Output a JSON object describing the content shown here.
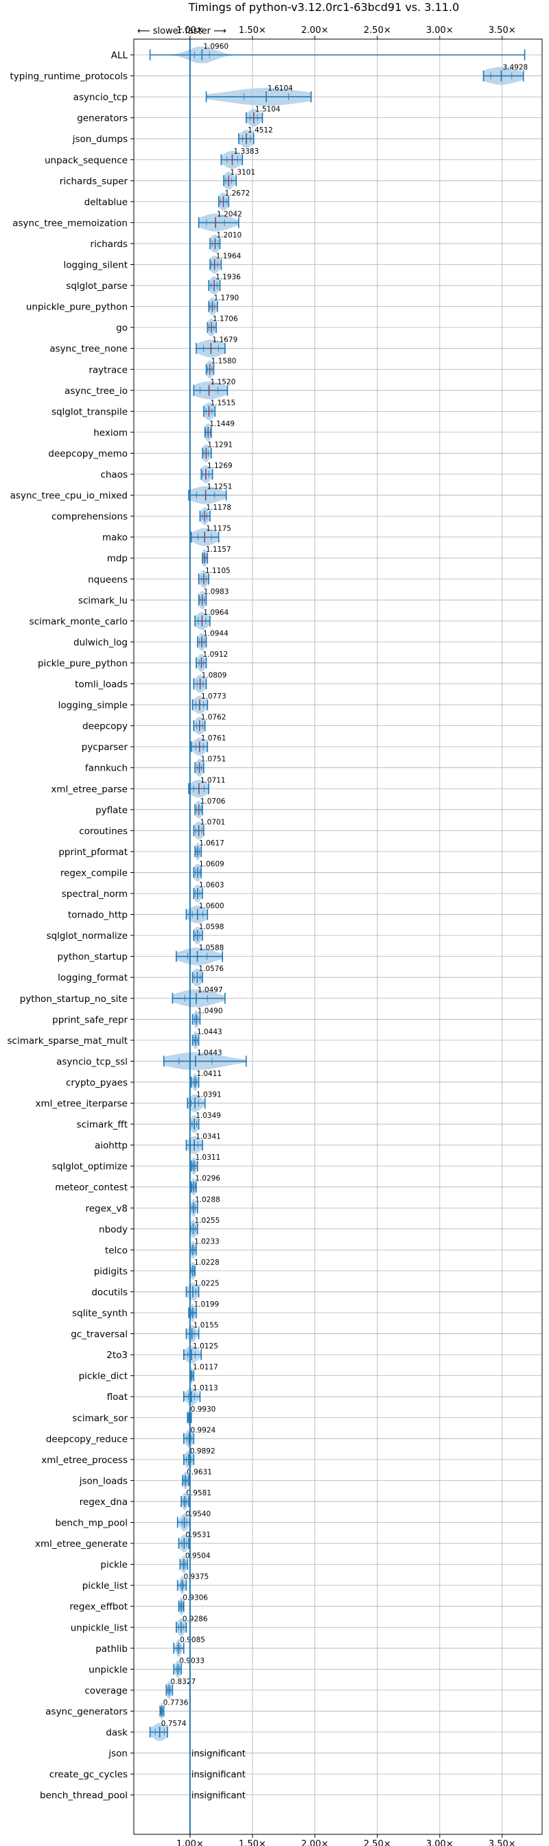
{
  "chart_data": {
    "type": "violin",
    "title": "Timings of python-v3.12.0rc1-63bcd91 vs. 3.11.0",
    "direction_label": "⟵ slower   faster ⟶",
    "x_ticks": [
      1.0,
      1.5,
      2.0,
      2.5,
      3.0,
      3.5
    ],
    "x_tick_labels": [
      "1.00×",
      "1.50×",
      "2.00×",
      "2.50×",
      "3.00×",
      "3.50×"
    ],
    "xlim": [
      0.55,
      3.82
    ],
    "reference_line": 1.0,
    "grid": true,
    "insignificant_label": "insignificant",
    "colors": {
      "violin": "#a6c8e4",
      "line": "#1f77b4",
      "median": "#d62728",
      "grid": "#b0b0b0"
    },
    "benchmarks": [
      {
        "name": "ALL",
        "value": 1.096,
        "label": "1.0960",
        "min": 0.68,
        "max": 3.68,
        "spread": 0.1
      },
      {
        "name": "typing_runtime_protocols",
        "value": 3.4928,
        "label": "3.4928",
        "min": 3.35,
        "max": 3.67,
        "spread": 0.14
      },
      {
        "name": "asyncio_tcp",
        "value": 1.6104,
        "label": "1.6104",
        "min": 1.13,
        "max": 1.97,
        "spread": 0.3
      },
      {
        "name": "generators",
        "value": 1.5104,
        "label": "1.5104",
        "min": 1.45,
        "max": 1.58,
        "spread": 0.05
      },
      {
        "name": "json_dumps",
        "value": 1.4512,
        "label": "1.4512",
        "min": 1.39,
        "max": 1.51,
        "spread": 0.05
      },
      {
        "name": "unpack_sequence",
        "value": 1.3383,
        "label": "1.3383",
        "min": 1.25,
        "max": 1.42,
        "spread": 0.07
      },
      {
        "name": "richards_super",
        "value": 1.3101,
        "label": "1.3101",
        "min": 1.27,
        "max": 1.37,
        "spread": 0.04
      },
      {
        "name": "deltablue",
        "value": 1.2672,
        "label": "1.2672",
        "min": 1.23,
        "max": 1.31,
        "spread": 0.04
      },
      {
        "name": "async_tree_memoization",
        "value": 1.2042,
        "label": "1.2042",
        "min": 1.07,
        "max": 1.39,
        "spread": 0.12
      },
      {
        "name": "richards",
        "value": 1.201,
        "label": "1.2010",
        "min": 1.16,
        "max": 1.24,
        "spread": 0.04
      },
      {
        "name": "logging_silent",
        "value": 1.1964,
        "label": "1.1964",
        "min": 1.16,
        "max": 1.25,
        "spread": 0.04
      },
      {
        "name": "sqlglot_parse",
        "value": 1.1936,
        "label": "1.1936",
        "min": 1.15,
        "max": 1.24,
        "spread": 0.04
      },
      {
        "name": "unpickle_pure_python",
        "value": 1.179,
        "label": "1.1790",
        "min": 1.15,
        "max": 1.22,
        "spread": 0.03
      },
      {
        "name": "go",
        "value": 1.1706,
        "label": "1.1706",
        "min": 1.14,
        "max": 1.21,
        "spread": 0.03
      },
      {
        "name": "async_tree_none",
        "value": 1.1679,
        "label": "1.1679",
        "min": 1.05,
        "max": 1.28,
        "spread": 0.1
      },
      {
        "name": "raytrace",
        "value": 1.158,
        "label": "1.1580",
        "min": 1.13,
        "max": 1.19,
        "spread": 0.03
      },
      {
        "name": "async_tree_io",
        "value": 1.152,
        "label": "1.1520",
        "min": 1.03,
        "max": 1.3,
        "spread": 0.12
      },
      {
        "name": "sqlglot_transpile",
        "value": 1.1515,
        "label": "1.1515",
        "min": 1.11,
        "max": 1.2,
        "spread": 0.04
      },
      {
        "name": "hexiom",
        "value": 1.1449,
        "label": "1.1449",
        "min": 1.12,
        "max": 1.17,
        "spread": 0.03
      },
      {
        "name": "deepcopy_memo",
        "value": 1.1291,
        "label": "1.1291",
        "min": 1.1,
        "max": 1.17,
        "spread": 0.03
      },
      {
        "name": "chaos",
        "value": 1.1269,
        "label": "1.1269",
        "min": 1.09,
        "max": 1.18,
        "spread": 0.04
      },
      {
        "name": "async_tree_cpu_io_mixed",
        "value": 1.1251,
        "label": "1.1251",
        "min": 0.99,
        "max": 1.29,
        "spread": 0.12
      },
      {
        "name": "comprehensions",
        "value": 1.1178,
        "label": "1.1178",
        "min": 1.08,
        "max": 1.16,
        "spread": 0.03
      },
      {
        "name": "mako",
        "value": 1.1175,
        "label": "1.1175",
        "min": 1.01,
        "max": 1.23,
        "spread": 0.09
      },
      {
        "name": "mdp",
        "value": 1.1157,
        "label": "1.1157",
        "min": 1.1,
        "max": 1.14,
        "spread": 0.02
      },
      {
        "name": "nqueens",
        "value": 1.1105,
        "label": "1.1105",
        "min": 1.07,
        "max": 1.15,
        "spread": 0.03
      },
      {
        "name": "scimark_lu",
        "value": 1.0983,
        "label": "1.0983",
        "min": 1.07,
        "max": 1.13,
        "spread": 0.03
      },
      {
        "name": "scimark_monte_carlo",
        "value": 1.0964,
        "label": "1.0964",
        "min": 1.04,
        "max": 1.16,
        "spread": 0.05
      },
      {
        "name": "dulwich_log",
        "value": 1.0944,
        "label": "1.0944",
        "min": 1.06,
        "max": 1.13,
        "spread": 0.03
      },
      {
        "name": "pickle_pure_python",
        "value": 1.0912,
        "label": "1.0912",
        "min": 1.05,
        "max": 1.13,
        "spread": 0.03
      },
      {
        "name": "tomli_loads",
        "value": 1.0809,
        "label": "1.0809",
        "min": 1.03,
        "max": 1.13,
        "spread": 0.04
      },
      {
        "name": "logging_simple",
        "value": 1.0773,
        "label": "1.0773",
        "min": 1.02,
        "max": 1.14,
        "spread": 0.05
      },
      {
        "name": "deepcopy",
        "value": 1.0762,
        "label": "1.0762",
        "min": 1.03,
        "max": 1.12,
        "spread": 0.04
      },
      {
        "name": "pycparser",
        "value": 1.0761,
        "label": "1.0761",
        "min": 1.01,
        "max": 1.14,
        "spread": 0.05
      },
      {
        "name": "fannkuch",
        "value": 1.0751,
        "label": "1.0751",
        "min": 1.04,
        "max": 1.11,
        "spread": 0.03
      },
      {
        "name": "xml_etree_parse",
        "value": 1.0711,
        "label": "1.0711",
        "min": 0.99,
        "max": 1.15,
        "spread": 0.07
      },
      {
        "name": "pyflate",
        "value": 1.0706,
        "label": "1.0706",
        "min": 1.04,
        "max": 1.1,
        "spread": 0.03
      },
      {
        "name": "coroutines",
        "value": 1.0701,
        "label": "1.0701",
        "min": 1.03,
        "max": 1.11,
        "spread": 0.04
      },
      {
        "name": "pprint_pformat",
        "value": 1.0617,
        "label": "1.0617",
        "min": 1.04,
        "max": 1.09,
        "spread": 0.02
      },
      {
        "name": "regex_compile",
        "value": 1.0609,
        "label": "1.0609",
        "min": 1.03,
        "max": 1.09,
        "spread": 0.03
      },
      {
        "name": "spectral_norm",
        "value": 1.0603,
        "label": "1.0603",
        "min": 1.03,
        "max": 1.1,
        "spread": 0.03
      },
      {
        "name": "tornado_http",
        "value": 1.06,
        "label": "1.0600",
        "min": 0.97,
        "max": 1.14,
        "spread": 0.07
      },
      {
        "name": "sqlglot_normalize",
        "value": 1.0598,
        "label": "1.0598",
        "min": 1.03,
        "max": 1.1,
        "spread": 0.03
      },
      {
        "name": "python_startup",
        "value": 1.0588,
        "label": "1.0588",
        "min": 0.89,
        "max": 1.26,
        "spread": 0.13
      },
      {
        "name": "logging_format",
        "value": 1.0576,
        "label": "1.0576",
        "min": 1.02,
        "max": 1.1,
        "spread": 0.04
      },
      {
        "name": "python_startup_no_site",
        "value": 1.0497,
        "label": "1.0497",
        "min": 0.86,
        "max": 1.28,
        "spread": 0.15
      },
      {
        "name": "pprint_safe_repr",
        "value": 1.049,
        "label": "1.0490",
        "min": 1.02,
        "max": 1.08,
        "spread": 0.02
      },
      {
        "name": "scimark_sparse_mat_mult",
        "value": 1.0443,
        "label": "1.0443",
        "min": 1.02,
        "max": 1.07,
        "spread": 0.02
      },
      {
        "name": "asyncio_tcp_ssl",
        "value": 1.0443,
        "label": "1.0443",
        "min": 0.79,
        "max": 1.45,
        "spread": 0.22
      },
      {
        "name": "crypto_pyaes",
        "value": 1.0411,
        "label": "1.0411",
        "min": 1.01,
        "max": 1.07,
        "spread": 0.02
      },
      {
        "name": "xml_etree_iterparse",
        "value": 1.0391,
        "label": "1.0391",
        "min": 0.98,
        "max": 1.12,
        "spread": 0.05
      },
      {
        "name": "scimark_fft",
        "value": 1.0349,
        "label": "1.0349",
        "min": 1.0,
        "max": 1.07,
        "spread": 0.03
      },
      {
        "name": "aiohttp",
        "value": 1.0341,
        "label": "1.0341",
        "min": 0.97,
        "max": 1.1,
        "spread": 0.05
      },
      {
        "name": "sqlglot_optimize",
        "value": 1.0311,
        "label": "1.0311",
        "min": 1.01,
        "max": 1.06,
        "spread": 0.02
      },
      {
        "name": "meteor_contest",
        "value": 1.0296,
        "label": "1.0296",
        "min": 1.01,
        "max": 1.05,
        "spread": 0.02
      },
      {
        "name": "regex_v8",
        "value": 1.0288,
        "label": "1.0288",
        "min": 1.0,
        "max": 1.06,
        "spread": 0.02
      },
      {
        "name": "nbody",
        "value": 1.0255,
        "label": "1.0255",
        "min": 1.0,
        "max": 1.06,
        "spread": 0.03
      },
      {
        "name": "telco",
        "value": 1.0233,
        "label": "1.0233",
        "min": 1.0,
        "max": 1.05,
        "spread": 0.02
      },
      {
        "name": "pidigits",
        "value": 1.0228,
        "label": "1.0228",
        "min": 1.0,
        "max": 1.04,
        "spread": 0.02
      },
      {
        "name": "docutils",
        "value": 1.0225,
        "label": "1.0225",
        "min": 0.97,
        "max": 1.07,
        "spread": 0.04
      },
      {
        "name": "sqlite_synth",
        "value": 1.0199,
        "label": "1.0199",
        "min": 0.99,
        "max": 1.05,
        "spread": 0.02
      },
      {
        "name": "gc_traversal",
        "value": 1.0155,
        "label": "1.0155",
        "min": 0.97,
        "max": 1.07,
        "spread": 0.03
      },
      {
        "name": "2to3",
        "value": 1.0125,
        "label": "1.0125",
        "min": 0.95,
        "max": 1.09,
        "spread": 0.05
      },
      {
        "name": "pickle_dict",
        "value": 1.0117,
        "label": "1.0117",
        "min": 1.0,
        "max": 1.03,
        "spread": 0.01
      },
      {
        "name": "float",
        "value": 1.0113,
        "label": "1.0113",
        "min": 0.95,
        "max": 1.08,
        "spread": 0.04
      },
      {
        "name": "scimark_sor",
        "value": 0.993,
        "label": "0.9930",
        "min": 0.98,
        "max": 1.01,
        "spread": 0.01
      },
      {
        "name": "deepcopy_reduce",
        "value": 0.9924,
        "label": "0.9924",
        "min": 0.95,
        "max": 1.03,
        "spread": 0.03
      },
      {
        "name": "xml_etree_process",
        "value": 0.9892,
        "label": "0.9892",
        "min": 0.95,
        "max": 1.03,
        "spread": 0.03
      },
      {
        "name": "json_loads",
        "value": 0.9631,
        "label": "0.9631",
        "min": 0.94,
        "max": 0.99,
        "spread": 0.02
      },
      {
        "name": "regex_dna",
        "value": 0.9581,
        "label": "0.9581",
        "min": 0.93,
        "max": 0.99,
        "spread": 0.02
      },
      {
        "name": "bench_mp_pool",
        "value": 0.954,
        "label": "0.9540",
        "min": 0.9,
        "max": 1.0,
        "spread": 0.03
      },
      {
        "name": "xml_etree_generate",
        "value": 0.9531,
        "label": "0.9531",
        "min": 0.91,
        "max": 0.99,
        "spread": 0.03
      },
      {
        "name": "pickle",
        "value": 0.9504,
        "label": "0.9504",
        "min": 0.92,
        "max": 0.98,
        "spread": 0.02
      },
      {
        "name": "pickle_list",
        "value": 0.9375,
        "label": "0.9375",
        "min": 0.9,
        "max": 0.97,
        "spread": 0.02
      },
      {
        "name": "regex_effbot",
        "value": 0.9306,
        "label": "0.9306",
        "min": 0.91,
        "max": 0.95,
        "spread": 0.02
      },
      {
        "name": "unpickle_list",
        "value": 0.9286,
        "label": "0.9286",
        "min": 0.89,
        "max": 0.97,
        "spread": 0.03
      },
      {
        "name": "pathlib",
        "value": 0.9085,
        "label": "0.9085",
        "min": 0.87,
        "max": 0.95,
        "spread": 0.02
      },
      {
        "name": "unpickle",
        "value": 0.9033,
        "label": "0.9033",
        "min": 0.87,
        "max": 0.93,
        "spread": 0.02
      },
      {
        "name": "coverage",
        "value": 0.8327,
        "label": "0.8327",
        "min": 0.81,
        "max": 0.86,
        "spread": 0.02
      },
      {
        "name": "async_generators",
        "value": 0.7736,
        "label": "0.7736",
        "min": 0.76,
        "max": 0.79,
        "spread": 0.01
      },
      {
        "name": "dask",
        "value": 0.7574,
        "label": "0.7574",
        "min": 0.68,
        "max": 0.82,
        "spread": 0.06
      },
      {
        "name": "json",
        "insignificant": true
      },
      {
        "name": "create_gc_cycles",
        "insignificant": true
      },
      {
        "name": "bench_thread_pool",
        "insignificant": true
      }
    ]
  }
}
